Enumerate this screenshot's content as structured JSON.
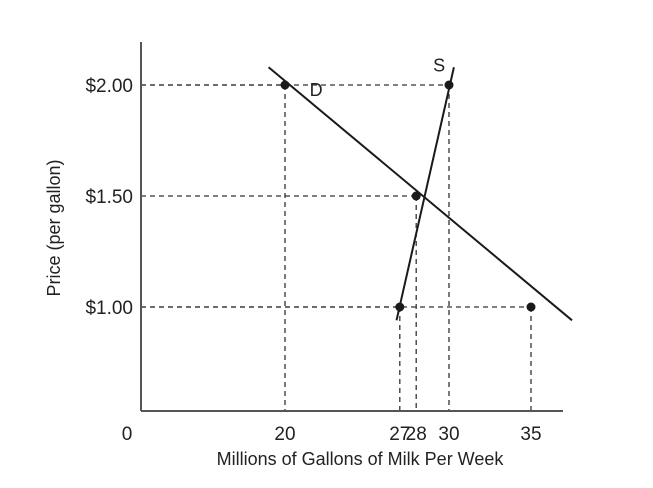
{
  "chart_data": {
    "type": "line",
    "title": "",
    "xlabel": "Millions of Gallons of Milk Per Week",
    "ylabel": "Price (per gallon)",
    "origin_label": "0",
    "x_ticks": [
      {
        "value": 20,
        "label": "20"
      },
      {
        "value": 27,
        "label": "27"
      },
      {
        "value": 28,
        "label": "28"
      },
      {
        "value": 30,
        "label": "30"
      },
      {
        "value": 35,
        "label": "35"
      }
    ],
    "y_ticks": [
      {
        "value": 1.0,
        "label": "$1.00"
      },
      {
        "value": 1.5,
        "label": "$1.50"
      },
      {
        "value": 2.0,
        "label": "$2.00"
      }
    ],
    "series": [
      {
        "name": "D",
        "line": [
          [
            19,
            2.08
          ],
          [
            37.5,
            0.94
          ]
        ],
        "points": [
          [
            20,
            2.0
          ],
          [
            28,
            1.5
          ],
          [
            35,
            1.0
          ]
        ]
      },
      {
        "name": "S",
        "line": [
          [
            26.8,
            0.94
          ],
          [
            30.3,
            2.08
          ]
        ],
        "points": [
          [
            27,
            1.0
          ],
          [
            28,
            1.5
          ],
          [
            30,
            2.0
          ]
        ]
      }
    ],
    "guides": [
      [
        20,
        2.0
      ],
      [
        28,
        1.5
      ],
      [
        30,
        2.0
      ],
      [
        27,
        1.0
      ],
      [
        35,
        1.0
      ]
    ],
    "curve_labels": [
      {
        "text": "D",
        "x": 21.9,
        "y": 1.95
      },
      {
        "text": "S",
        "x": 29.4,
        "y": 2.06
      }
    ],
    "grid": false,
    "legend": "none"
  }
}
